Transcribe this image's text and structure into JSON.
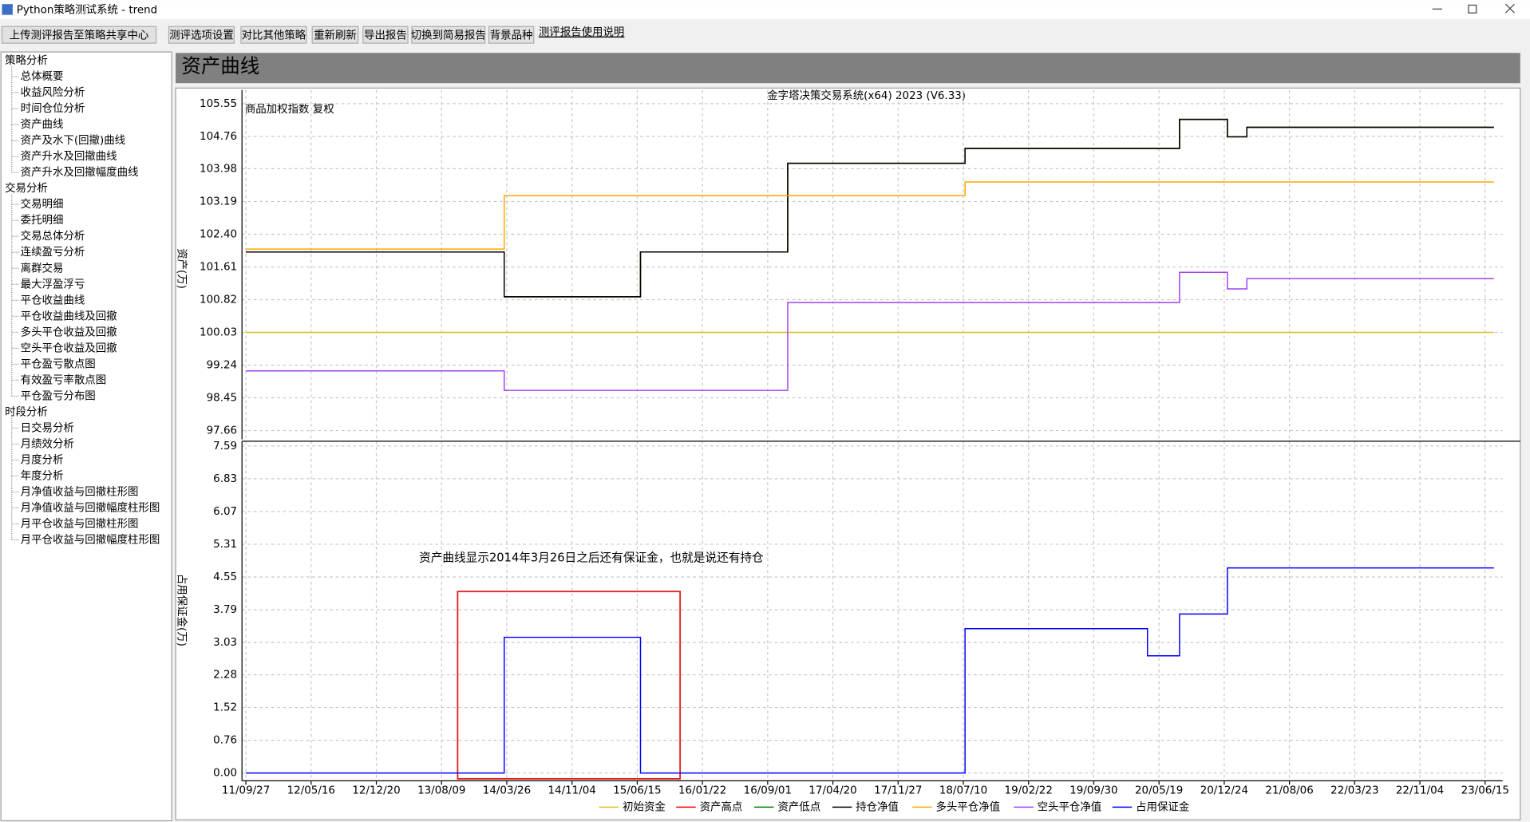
{
  "window": {
    "title": "Python策略测试系统 - trend"
  },
  "toolbar": {
    "buttons": [
      "上传测评报告至策略共享中心",
      "测评选项设置",
      "对比其他策略",
      "重新刷新",
      "导出报告",
      "切换到简易报告",
      "背景品种"
    ],
    "link": "测评报告使用说明"
  },
  "sidebar": {
    "groups": [
      {
        "label": "策略分析",
        "items": [
          "总体概要",
          "收益风险分析",
          "时间仓位分析",
          "资产曲线",
          "资产及水下(回撤)曲线",
          "资产升水及回撤曲线",
          "资产升水及回撤幅度曲线"
        ]
      },
      {
        "label": "交易分析",
        "items": [
          "交易明细",
          "委托明细",
          "交易总体分析",
          "连续盈亏分析",
          "离群交易",
          "最大浮盈浮亏",
          "平仓收益曲线",
          "平仓收益曲线及回撤",
          "多头平仓收益及回撤",
          "空头平仓收益及回撤",
          "平仓盈亏散点图",
          "有效盈亏率散点图",
          "平仓盈亏分布图"
        ]
      },
      {
        "label": "时段分析",
        "items": [
          "日交易分析",
          "月绩效分析",
          "月度分析",
          "年度分析",
          "月净值收益与回撤柱形图",
          "月净值收益与回撤幅度柱形图",
          "月平仓收益与回撤柱形图",
          "月平仓收益与回撤幅度柱形图"
        ]
      }
    ]
  },
  "panel": {
    "title": "资产曲线"
  },
  "chart_data": {
    "type": "line",
    "title": "金字塔决策交易系统(x64) 2023 (V6.33)",
    "subtitle": "商品加权指数 复权",
    "annotation": "资产曲线显示2014年3月26日之后还有保证金，也就是说还有持仓",
    "grid": true,
    "x": [
      "11/09/27",
      "14/03/17",
      "15/06/26",
      "16/11/11",
      "18/07/16",
      "20/04/08",
      "20/07/27",
      "21/01/04",
      "21/03/12",
      "23/07/15"
    ],
    "xticks": [
      "11/09/27",
      "12/05/16",
      "12/12/20",
      "13/08/09",
      "14/03/26",
      "14/11/04",
      "15/06/15",
      "16/01/22",
      "16/09/01",
      "17/04/20",
      "17/11/27",
      "18/07/10",
      "19/02/22",
      "19/09/30",
      "20/05/19",
      "20/12/24",
      "21/08/06",
      "22/03/23",
      "22/11/04",
      "23/06/15"
    ],
    "panels": [
      {
        "ylabel": "资产(万)",
        "ylim": [
          97.45,
          105.88
        ],
        "yticks": [
          105.55,
          104.76,
          103.98,
          103.19,
          {
            "value": 102.4,
            "label": "102.40"
          },
          101.61,
          100.82,
          100.03,
          99.24,
          98.45,
          97.66
        ],
        "series": [
          {
            "name": "初始资金",
            "color": "#e0c020",
            "values": [
              100.03,
              100.03,
              100.03,
              100.03,
              100.03,
              100.03,
              100.03,
              100.03,
              100.03,
              100.03
            ]
          },
          {
            "name": "资产高点",
            "color": "#ff0000",
            "values": [
              101.97,
              100.89,
              101.97,
              104.11,
              104.47,
              104.47,
              105.17,
              104.75,
              104.98,
              104.98
            ]
          },
          {
            "name": "资产低点",
            "color": "#008000",
            "values": [
              101.97,
              100.89,
              101.97,
              104.11,
              104.47,
              104.47,
              105.17,
              104.75,
              104.98,
              104.98
            ]
          },
          {
            "name": "持仓净值",
            "color": "#000000",
            "values": [
              101.97,
              100.89,
              101.97,
              104.11,
              104.47,
              104.47,
              105.17,
              104.75,
              104.98,
              104.98
            ]
          },
          {
            "name": "多头平仓净值",
            "color": "#ffa500",
            "values": [
              102.04,
              103.33,
              103.33,
              103.33,
              103.66,
              103.66,
              103.66,
              103.66,
              103.66,
              103.66
            ]
          },
          {
            "name": "空头平仓净值",
            "color": "#a040f0",
            "values": [
              99.1,
              98.63,
              98.63,
              100.75,
              100.75,
              100.75,
              101.48,
              101.08,
              101.33,
              101.33
            ]
          }
        ]
      },
      {
        "ylabel": "占用保证金(万)",
        "ylim": [
          -0.18,
          7.7
        ],
        "yticks": [
          7.59,
          6.83,
          6.07,
          5.31,
          4.55,
          3.79,
          3.03,
          2.28,
          1.52,
          0.76,
          {
            "value": 0,
            "label": "0.00"
          }
        ],
        "series": [
          {
            "name": "占用保证金",
            "color": "#0000ff",
            "values": [
              0,
              3.15,
              0,
              0,
              3.35,
              2.72,
              3.69,
              4.76,
              4.76,
              4.76
            ]
          }
        ]
      }
    ]
  }
}
